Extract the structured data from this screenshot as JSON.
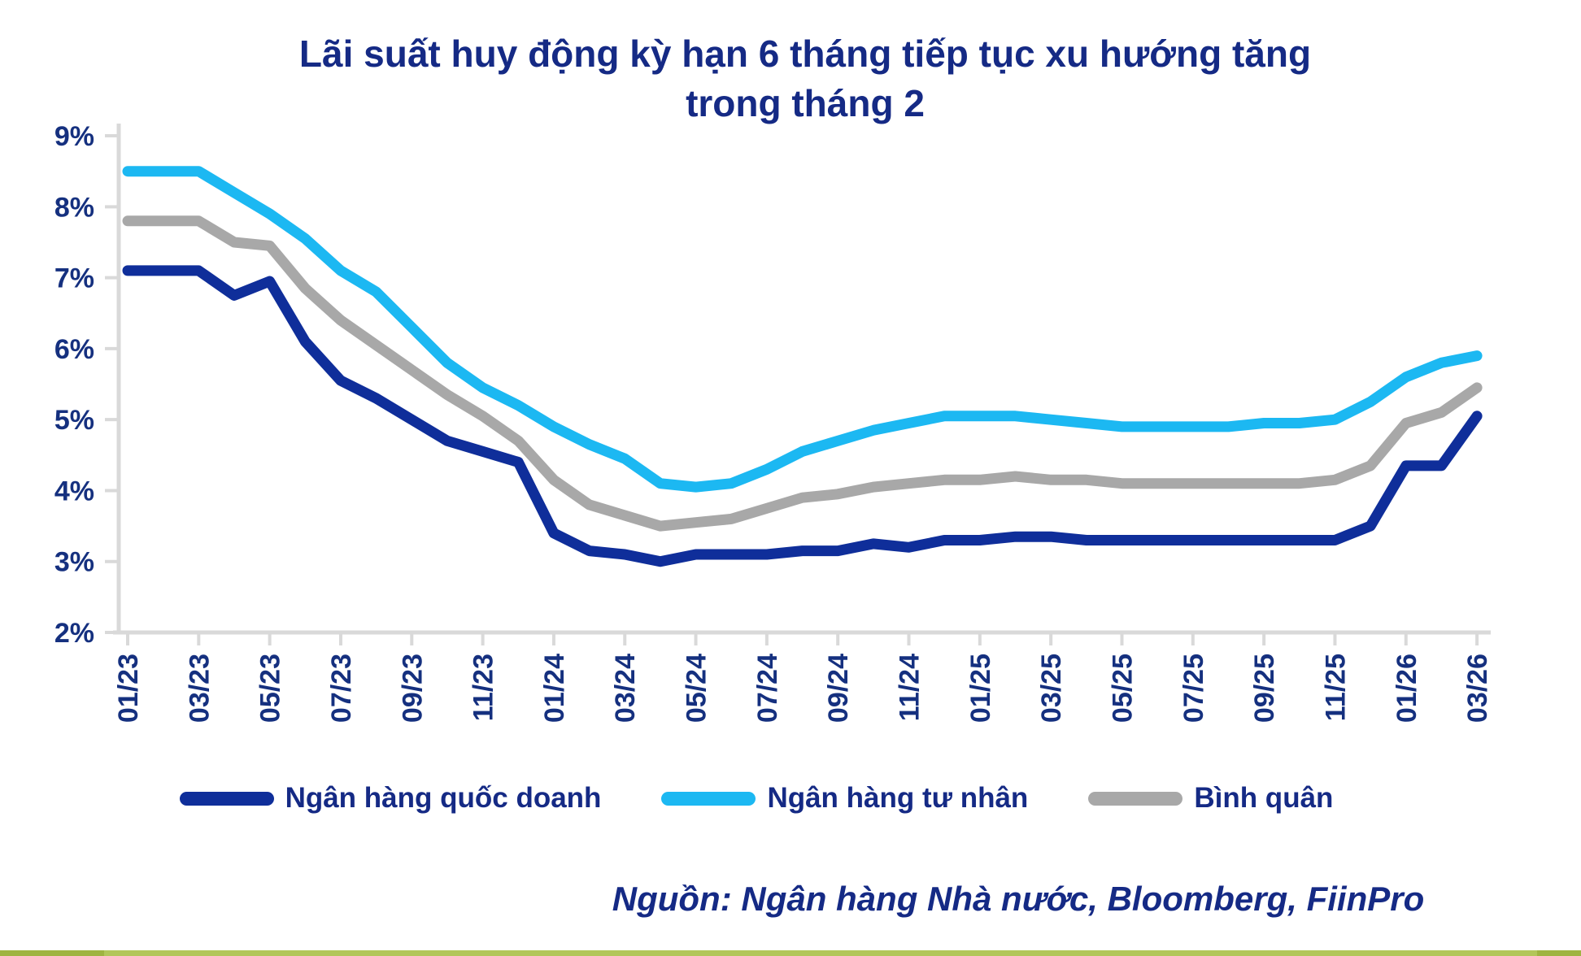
{
  "title": "Lãi suất huy động kỳ hạn 6 tháng tiếp tục xu hướng tăng trong tháng 2",
  "source": "Nguồn:  Ngân hàng Nhà nước, Bloomberg, FiinPro",
  "colors": {
    "title_text": "#152a85",
    "axis_text": "#15307f",
    "axis_line": "#d9d9d9",
    "state_bank_line": "#0f2e9a",
    "private_bank_line": "#1cb8f2",
    "average_line": "#a8a8a8",
    "bottom_bar_dark": "#9fb442",
    "bottom_bar_light": "#b2c65a"
  },
  "legend": {
    "items": [
      {
        "label": "Ngân hàng quốc doanh",
        "color": "#0f2e9a"
      },
      {
        "label": "Ngân hàng tư nhân",
        "color": "#1cb8f2"
      },
      {
        "label": "Bình quân",
        "color": "#a8a8a8"
      }
    ]
  },
  "chart_data": {
    "type": "line",
    "title": "Lãi suất huy động kỳ hạn 6 tháng tiếp tục xu hướng tăng trong tháng 2",
    "xlabel": "",
    "ylabel": "",
    "ylim": [
      2,
      9
    ],
    "grid": false,
    "legend_position": "bottom",
    "y_tick_labels": [
      "2%",
      "3%",
      "4%",
      "5%",
      "6%",
      "7%",
      "8%",
      "9%"
    ],
    "x": [
      "01/23",
      "02/23",
      "03/23",
      "04/23",
      "05/23",
      "06/23",
      "07/23",
      "08/23",
      "09/23",
      "10/23",
      "11/23",
      "12/23",
      "01/24",
      "02/24",
      "03/24",
      "04/24",
      "05/24",
      "06/24",
      "07/24",
      "08/24",
      "09/24",
      "10/24",
      "11/24",
      "12/24",
      "01/25",
      "02/25",
      "03/25",
      "04/25",
      "05/25",
      "06/25",
      "07/25",
      "08/25",
      "09/25",
      "10/25",
      "11/25",
      "12/25",
      "01/26",
      "02/26",
      "03/26"
    ],
    "x_tick_labels": [
      "01/23",
      "03/23",
      "05/23",
      "07/23",
      "09/23",
      "11/23",
      "01/24",
      "03/24",
      "05/24",
      "07/24",
      "09/24",
      "11/24",
      "01/25",
      "03/25",
      "05/25",
      "07/25",
      "09/25",
      "11/25",
      "01/26",
      "03/26"
    ],
    "series": [
      {
        "name": "Ngân hàng quốc doanh",
        "color": "#0f2e9a",
        "values": [
          7.1,
          7.1,
          7.1,
          6.75,
          6.95,
          6.1,
          5.55,
          5.3,
          5.0,
          4.7,
          4.55,
          4.4,
          3.4,
          3.15,
          3.1,
          3.0,
          3.1,
          3.1,
          3.1,
          3.15,
          3.15,
          3.25,
          3.2,
          3.3,
          3.3,
          3.35,
          3.35,
          3.3,
          3.3,
          3.3,
          3.3,
          3.3,
          3.3,
          3.3,
          3.3,
          3.5,
          4.35,
          4.35,
          5.05
        ]
      },
      {
        "name": "Ngân hàng tư nhân",
        "color": "#1cb8f2",
        "values": [
          8.5,
          8.5,
          8.5,
          8.2,
          7.9,
          7.55,
          7.1,
          6.8,
          6.3,
          5.8,
          5.45,
          5.2,
          4.9,
          4.65,
          4.45,
          4.1,
          4.05,
          4.1,
          4.3,
          4.55,
          4.7,
          4.85,
          4.95,
          5.05,
          5.05,
          5.05,
          5.0,
          4.95,
          4.9,
          4.9,
          4.9,
          4.9,
          4.95,
          4.95,
          5.0,
          5.25,
          5.6,
          5.8,
          5.9
        ]
      },
      {
        "name": "Bình quân",
        "color": "#a8a8a8",
        "values": [
          7.8,
          7.8,
          7.8,
          7.5,
          7.45,
          6.85,
          6.4,
          6.05,
          5.7,
          5.35,
          5.05,
          4.7,
          4.15,
          3.8,
          3.65,
          3.5,
          3.55,
          3.6,
          3.75,
          3.9,
          3.95,
          4.05,
          4.1,
          4.15,
          4.15,
          4.2,
          4.15,
          4.15,
          4.1,
          4.1,
          4.1,
          4.1,
          4.1,
          4.1,
          4.15,
          4.35,
          4.95,
          5.1,
          5.45
        ]
      }
    ]
  }
}
